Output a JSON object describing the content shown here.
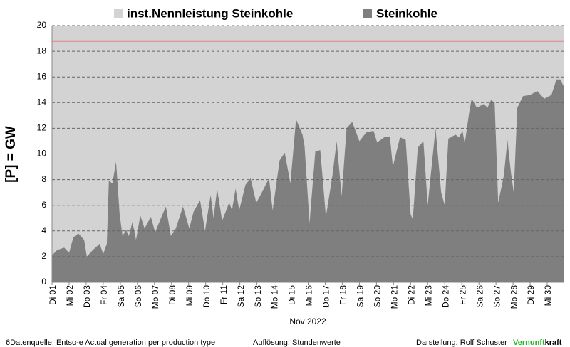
{
  "chart_data": {
    "type": "area",
    "series": [
      {
        "name": "inst.Nennleistung Steinkohle",
        "color": "#d3d3d3",
        "line_color": "#ff3030",
        "x": [
          0,
          30
        ],
        "values": [
          18.8,
          18.8
        ]
      },
      {
        "name": "Steinkohle",
        "color": "#7f7f7f",
        "x": [
          0,
          0.29,
          0.71,
          1,
          1.25,
          1.54,
          1.88,
          2.04,
          2.38,
          2.79,
          3,
          3.21,
          3.33,
          3.54,
          3.75,
          3.96,
          4.13,
          4.33,
          4.5,
          4.71,
          4.92,
          5.17,
          5.42,
          5.79,
          6.04,
          6.38,
          6.67,
          6.96,
          7.25,
          7.67,
          8.04,
          8.29,
          8.67,
          8.96,
          9.29,
          9.46,
          9.67,
          9.96,
          10.38,
          10.54,
          10.75,
          10.96,
          11.33,
          11.63,
          11.96,
          12.21,
          12.71,
          12.92,
          13.33,
          13.63,
          13.96,
          14.29,
          14.67,
          14.79,
          15.08,
          15.42,
          15.71,
          16.04,
          16.42,
          16.67,
          16.96,
          17.25,
          17.58,
          18,
          18.42,
          18.83,
          19.04,
          19.46,
          19.79,
          19.96,
          20.38,
          20.71,
          21,
          21.13,
          21.42,
          21.75,
          22,
          22.46,
          22.79,
          23,
          23.21,
          23.63,
          23.83,
          24.04,
          24.17,
          24.46,
          24.58,
          24.88,
          25.29,
          25.5,
          25.71,
          25.92,
          26.13,
          26.46,
          26.67,
          26.88,
          27.04,
          27.25,
          27.58,
          28,
          28.42,
          28.83,
          29.25,
          29.54,
          29.75,
          29.96
        ],
        "values": [
          2.1,
          2.5,
          2.7,
          2.3,
          3.5,
          3.8,
          3.3,
          2.0,
          2.5,
          3.0,
          2.2,
          3.0,
          7.9,
          7.7,
          9.4,
          5.3,
          3.6,
          4.1,
          3.6,
          4.7,
          3.3,
          5.2,
          4.2,
          5.1,
          3.9,
          5.0,
          5.9,
          3.6,
          4.2,
          5.9,
          4.2,
          5.5,
          6.4,
          4.0,
          6.8,
          5.0,
          7.3,
          4.8,
          6.2,
          5.6,
          7.3,
          5.6,
          7.6,
          8.1,
          6.2,
          6.8,
          8.1,
          5.6,
          9.5,
          10.1,
          7.7,
          12.7,
          11.5,
          10.6,
          4.6,
          10.2,
          10.3,
          5.1,
          8.3,
          11.0,
          6.7,
          12.0,
          12.5,
          11.0,
          11.7,
          11.8,
          10.9,
          11.3,
          11.3,
          9.0,
          11.3,
          11.1,
          5.3,
          4.9,
          10.5,
          11.0,
          6.0,
          12.0,
          7.0,
          6.0,
          11.2,
          11.5,
          11.3,
          11.8,
          10.8,
          13.5,
          14.3,
          13.6,
          13.9,
          13.6,
          14.2,
          14.0,
          6.2,
          8.3,
          11.1,
          8.5,
          7.0,
          13.6,
          14.5,
          14.6,
          14.9,
          14.3,
          14.6,
          15.8,
          15.8,
          15.3
        ]
      }
    ],
    "ylabel": "[P]  = GW",
    "xlabel": "Nov 2022",
    "ylim": [
      0,
      20
    ],
    "yticks": [
      0,
      2,
      4,
      6,
      8,
      10,
      12,
      14,
      16,
      18,
      20
    ],
    "xlim": [
      0,
      30
    ],
    "xticks": [
      {
        "value": 0,
        "label": "Di 01"
      },
      {
        "value": 1,
        "label": "Mi 02"
      },
      {
        "value": 2,
        "label": "Do 03"
      },
      {
        "value": 3,
        "label": "Fr 04"
      },
      {
        "value": 4,
        "label": "Sa 05"
      },
      {
        "value": 5,
        "label": "So 06"
      },
      {
        "value": 6,
        "label": "Mo 07"
      },
      {
        "value": 7,
        "label": "Di 08"
      },
      {
        "value": 8,
        "label": "Mi 09"
      },
      {
        "value": 9,
        "label": "Do 10"
      },
      {
        "value": 10,
        "label": "Fr 11"
      },
      {
        "value": 11,
        "label": "Sa 12"
      },
      {
        "value": 12,
        "label": "So 13"
      },
      {
        "value": 13,
        "label": "Mo 14"
      },
      {
        "value": 14,
        "label": "Di 15"
      },
      {
        "value": 15,
        "label": "Mi 16"
      },
      {
        "value": 16,
        "label": "Do 17"
      },
      {
        "value": 17,
        "label": "Fr 18"
      },
      {
        "value": 18,
        "label": "Sa 19"
      },
      {
        "value": 19,
        "label": "So 20"
      },
      {
        "value": 20,
        "label": "Mo 21"
      },
      {
        "value": 21,
        "label": "Di 22"
      },
      {
        "value": 22,
        "label": "Mi 23"
      },
      {
        "value": 23,
        "label": "Do 24"
      },
      {
        "value": 24,
        "label": "Fr 25"
      },
      {
        "value": 25,
        "label": "Sa 26"
      },
      {
        "value": 26,
        "label": "So 27"
      },
      {
        "value": 27,
        "label": "Mo 28"
      },
      {
        "value": 28,
        "label": "Di 29"
      },
      {
        "value": 29,
        "label": "Mi 30"
      }
    ],
    "grid": true,
    "legend": "top",
    "footer": {
      "source": "6Datenquelle: Entso-e  Actual generation per production type",
      "resolution": "Auflösung: Stundenwerte",
      "author": "Darstellung:  Rolf Schuster",
      "brand_green": "Vernunft",
      "brand_black": "kraft"
    }
  }
}
